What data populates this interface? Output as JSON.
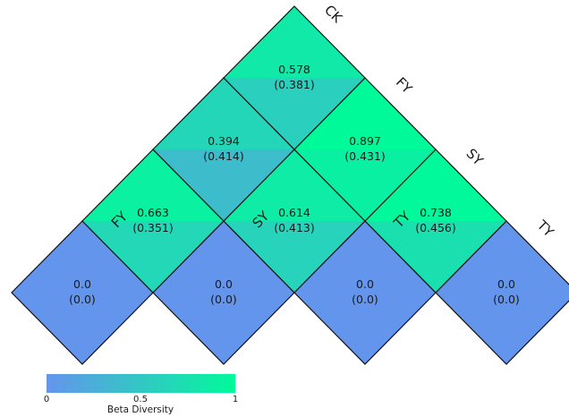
{
  "chart_data": {
    "type": "heatmap",
    "layout": "triangular-diamond",
    "labels": [
      "CK",
      "FY",
      "SY",
      "TY"
    ],
    "cells": [
      {
        "row": "CK",
        "col": "CK",
        "value": "0.0",
        "se": "(0.0)",
        "v": 0.0
      },
      {
        "row": "FY",
        "col": "FY",
        "value": "0.0",
        "se": "(0.0)",
        "v": 0.0
      },
      {
        "row": "SY",
        "col": "SY",
        "value": "0.0",
        "se": "(0.0)",
        "v": 0.0
      },
      {
        "row": "TY",
        "col": "TY",
        "value": "0.0",
        "se": "(0.0)",
        "v": 0.0
      },
      {
        "row": "CK",
        "col": "FY",
        "value": "0.663",
        "se": "(0.351)",
        "v": 0.663
      },
      {
        "row": "FY",
        "col": "SY",
        "value": "0.614",
        "se": "(0.413)",
        "v": 0.614
      },
      {
        "row": "SY",
        "col": "TY",
        "value": "0.738",
        "se": "(0.456)",
        "v": 0.738
      },
      {
        "row": "CK",
        "col": "SY",
        "value": "0.394",
        "se": "(0.414)",
        "v": 0.394
      },
      {
        "row": "FY",
        "col": "TY",
        "value": "0.897",
        "se": "(0.431)",
        "v": 0.897
      },
      {
        "row": "CK",
        "col": "TY",
        "value": "0.578",
        "se": "(0.381)",
        "v": 0.578
      }
    ],
    "colorbar": {
      "title": "Beta Diversity",
      "ticks": [
        "0",
        "0.5",
        "1"
      ],
      "range": [
        0,
        1
      ],
      "colors": [
        "#6495ED",
        "#00FA9A"
      ]
    }
  }
}
